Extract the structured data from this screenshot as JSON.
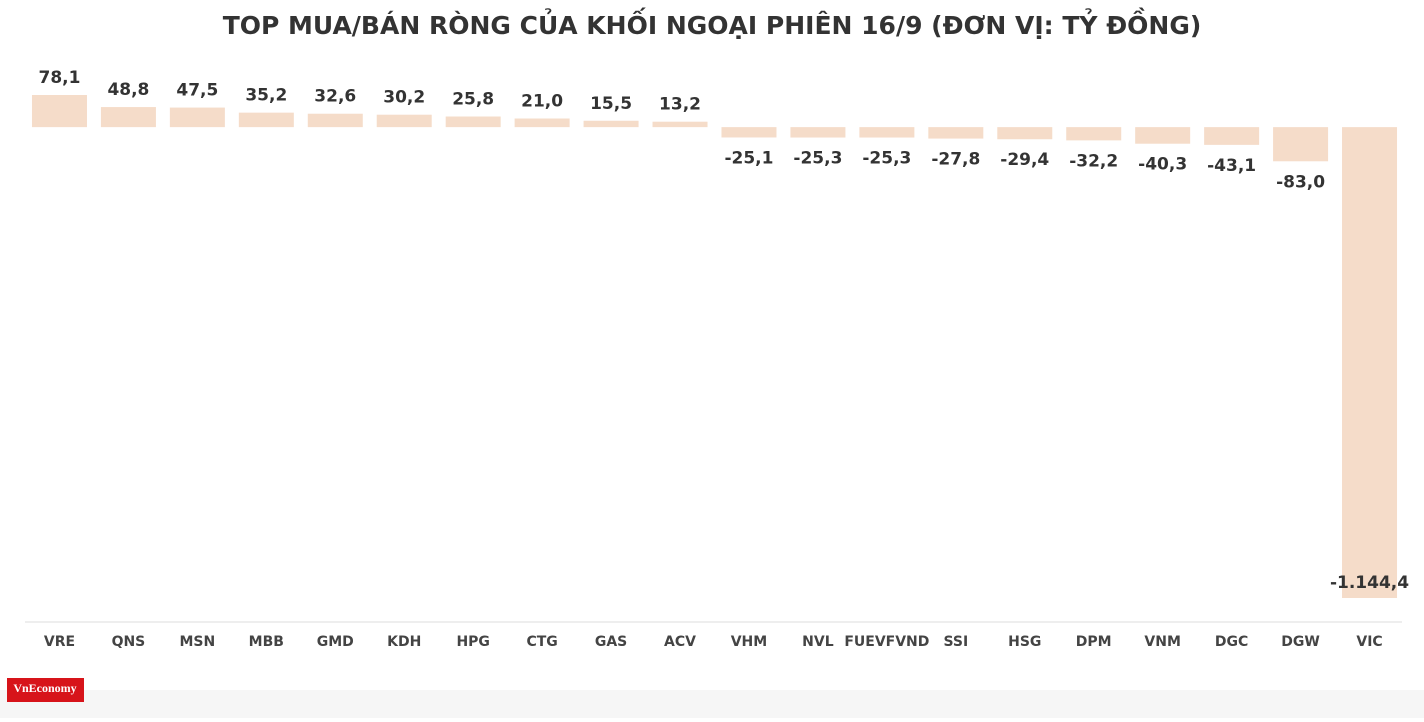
{
  "chart_data": {
    "type": "bar",
    "title": "TOP MUA/BÁN RÒNG CỦA KHỐI NGOẠI PHIÊN 16/9 (ĐƠN VỊ: TỶ ĐỒNG)",
    "categories": [
      "VRE",
      "QNS",
      "MSN",
      "MBB",
      "GMD",
      "KDH",
      "HPG",
      "CTG",
      "GAS",
      "ACV",
      "VHM",
      "NVL",
      "FUEVFVND",
      "SSI",
      "HSG",
      "DPM",
      "VNM",
      "DGC",
      "DGW",
      "VIC"
    ],
    "values": [
      78.1,
      48.8,
      47.5,
      35.2,
      32.6,
      30.2,
      25.8,
      21.0,
      15.5,
      13.2,
      -25.1,
      -25.3,
      -25.3,
      -27.8,
      -29.4,
      -32.2,
      -40.3,
      -43.1,
      -83.0,
      -1144.4
    ],
    "value_labels": [
      "78,1",
      "48,8",
      "47,5",
      "35,2",
      "32,6",
      "30,2",
      "25,8",
      "21,0",
      "15,5",
      "13,2",
      "-25,1",
      "-25,3",
      "-25,3",
      "-27,8",
      "-29,4",
      "-32,2",
      "-40,3",
      "-43,1",
      "-83,0",
      "-1.144,4"
    ],
    "color": "#f5dcc9"
  },
  "logo": "VnEconomy"
}
